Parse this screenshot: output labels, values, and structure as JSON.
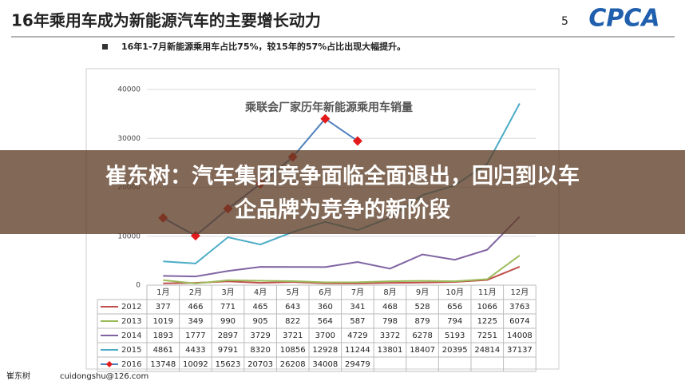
{
  "slide": {
    "title": "16年乘用车成为新能源汽车的主要增长动力",
    "page_number": "5",
    "logo": "CPCA",
    "bullet": "16年1-7月新能源乘用车占比75%，较15年的57%占比出现大幅提升。",
    "footer_author": "崔东树",
    "footer_email": "cuidongshu@126.com"
  },
  "banner": {
    "lines": [
      "崔东树：汽车集团竞争面临全面退出，回归到以车",
      "企品牌为竞争的新阶段"
    ]
  },
  "chart_data": {
    "type": "line",
    "title": "乘联会厂家历年新能源乘用车销量",
    "categories": [
      "1月",
      "2月",
      "3月",
      "4月",
      "5月",
      "6月",
      "7月",
      "8月",
      "9月",
      "10月",
      "11月",
      "12月"
    ],
    "ylim": [
      0,
      40000
    ],
    "yticks": [
      0,
      10000,
      20000,
      30000,
      40000
    ],
    "grid": true,
    "series": [
      {
        "name": "2012",
        "color": "#c0504d",
        "values": [
          377,
          466,
          771,
          465,
          643,
          360,
          341,
          468,
          528,
          656,
          1066,
          3763
        ]
      },
      {
        "name": "2013",
        "color": "#9bbb59",
        "values": [
          1019,
          349,
          990,
          905,
          822,
          564,
          587,
          798,
          879,
          794,
          1225,
          6074
        ]
      },
      {
        "name": "2014",
        "color": "#8064a2",
        "values": [
          1893,
          1777,
          2897,
          3729,
          3721,
          3700,
          4729,
          3372,
          6278,
          5193,
          7251,
          14008
        ]
      },
      {
        "name": "2015",
        "color": "#4bacc6",
        "values": [
          4861,
          4433,
          9791,
          8320,
          10856,
          12928,
          11244,
          13801,
          18407,
          20395,
          24814,
          37137
        ]
      },
      {
        "name": "2016",
        "color": "#4f81bd",
        "marker": "diamond",
        "marker_color": "#e31a1c",
        "values": [
          13748,
          10092,
          15623,
          20703,
          26208,
          34008,
          29479,
          null,
          null,
          null,
          null,
          null
        ]
      }
    ]
  }
}
